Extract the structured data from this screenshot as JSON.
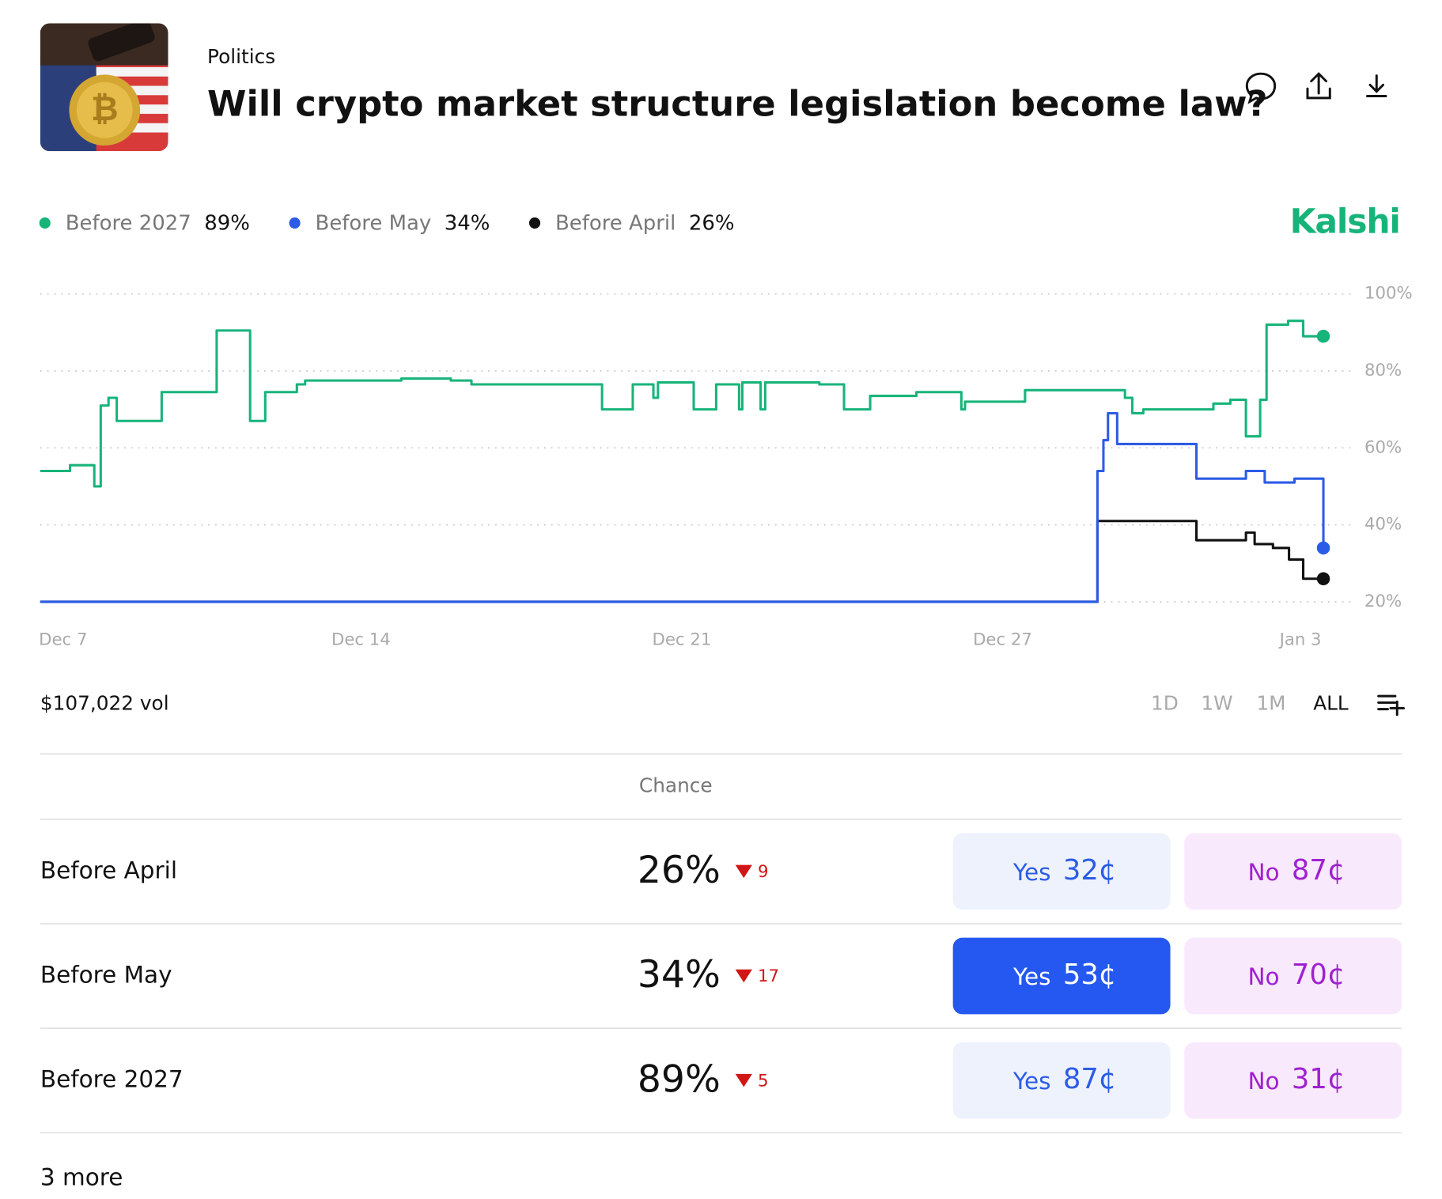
{
  "header": {
    "category": "Politics",
    "title": "Will crypto market structure legislation become law?"
  },
  "brand": "Kalshi",
  "chart_data": {
    "type": "line",
    "step": true,
    "xlim": [
      0,
      28
    ],
    "xticks": [
      {
        "value": 0.5,
        "label": "Dec 7"
      },
      {
        "value": 7,
        "label": "Dec 14"
      },
      {
        "value": 14,
        "label": "Dec 21"
      },
      {
        "value": 21,
        "label": "Dec 27"
      },
      {
        "value": 27.5,
        "label": "Jan 3"
      }
    ],
    "ylim": [
      20,
      100
    ],
    "yticks": [
      {
        "value": 20,
        "label": "20%"
      },
      {
        "value": 40,
        "label": "40%"
      },
      {
        "value": 60,
        "label": "60%"
      },
      {
        "value": 80,
        "label": "80%"
      },
      {
        "value": 100,
        "label": "100%"
      }
    ],
    "grid": true,
    "series": [
      {
        "name": "Before 2027",
        "color": "#17b47a",
        "legend_label": "89%",
        "x": [
          0,
          0.65,
          1.18,
          1.32,
          1.49,
          1.67,
          2.65,
          3.85,
          4.58,
          4.91,
          5.6,
          5.78,
          7.88,
          8.96,
          9.41,
          12.26,
          12.93,
          13.38,
          13.48,
          14.26,
          14.75,
          15.25,
          15.32,
          15.72,
          15.82,
          17.0,
          17.54,
          18.11,
          19.12,
          20.1,
          20.18,
          21.49,
          23.67,
          23.83,
          24.07,
          25.6,
          25.97,
          26.31,
          26.62,
          26.76,
          27.23,
          27.56,
          28
        ],
        "values": [
          54,
          55.5,
          50,
          71,
          73,
          67,
          74.5,
          90.5,
          67,
          74.5,
          76.5,
          77.5,
          78,
          77.5,
          76.5,
          70,
          76.5,
          73,
          77,
          70,
          76.5,
          70,
          77,
          70,
          77,
          76.5,
          70,
          73.5,
          74.5,
          70,
          72,
          75,
          73,
          69,
          70,
          71.5,
          72.5,
          63,
          72.5,
          92,
          93,
          89,
          89
        ]
      },
      {
        "name": "Before May",
        "color": "#2c5ce6",
        "legend_label": "34%",
        "x": [
          0,
          23.07,
          23.2,
          23.3,
          23.5,
          25.23,
          26.31,
          26.72,
          27.37,
          28
        ],
        "values": [
          20,
          54,
          62,
          69,
          61,
          52,
          54,
          51,
          52,
          34
        ]
      },
      {
        "name": "Before April",
        "color": "#111111",
        "legend_label": "26%",
        "x": [
          0,
          23.07,
          25.23,
          26.31,
          26.5,
          26.9,
          27.25,
          27.56,
          28
        ],
        "values": [
          20,
          41,
          36,
          38,
          35,
          34,
          31,
          26,
          26
        ]
      }
    ]
  },
  "volume": "$107,022 vol",
  "ranges": [
    "1D",
    "1W",
    "1M",
    "ALL"
  ],
  "active_range": "ALL",
  "table": {
    "header": "Chance",
    "rows": [
      {
        "name": "Before April",
        "chance": "26%",
        "change": "9",
        "yes": "Yes",
        "yes_price": "32¢",
        "no": "No",
        "no_price": "87¢",
        "highlighted": false
      },
      {
        "name": "Before May",
        "chance": "34%",
        "change": "17",
        "yes": "Yes",
        "yes_price": "53¢",
        "no": "No",
        "no_price": "70¢",
        "highlighted": true
      },
      {
        "name": "Before 2027",
        "chance": "89%",
        "change": "5",
        "yes": "Yes",
        "yes_price": "87¢",
        "no": "No",
        "no_price": "31¢",
        "highlighted": false
      }
    ],
    "more": "3 more"
  }
}
